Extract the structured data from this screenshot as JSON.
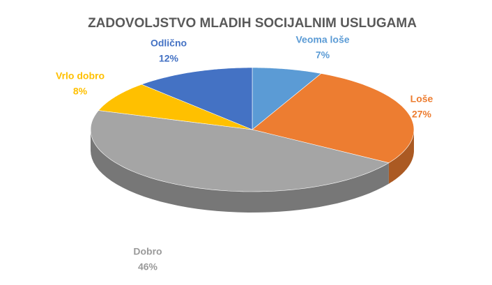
{
  "chart_data": {
    "type": "pie",
    "title": "ZADOVOLJSTVO MLADIH SOCIJALNIM USLUGAMA",
    "categories": [
      "Veoma loše",
      "Loše",
      "Dobro",
      "Vrlo dobro",
      "Odlično"
    ],
    "values": [
      7,
      27,
      46,
      8,
      12
    ],
    "value_labels": [
      "7%",
      "27%",
      "46%",
      "8%",
      "12%"
    ],
    "colors": [
      "#5b9bd5",
      "#ed7d31",
      "#a5a5a5",
      "#ffc000",
      "#4472c4"
    ]
  }
}
